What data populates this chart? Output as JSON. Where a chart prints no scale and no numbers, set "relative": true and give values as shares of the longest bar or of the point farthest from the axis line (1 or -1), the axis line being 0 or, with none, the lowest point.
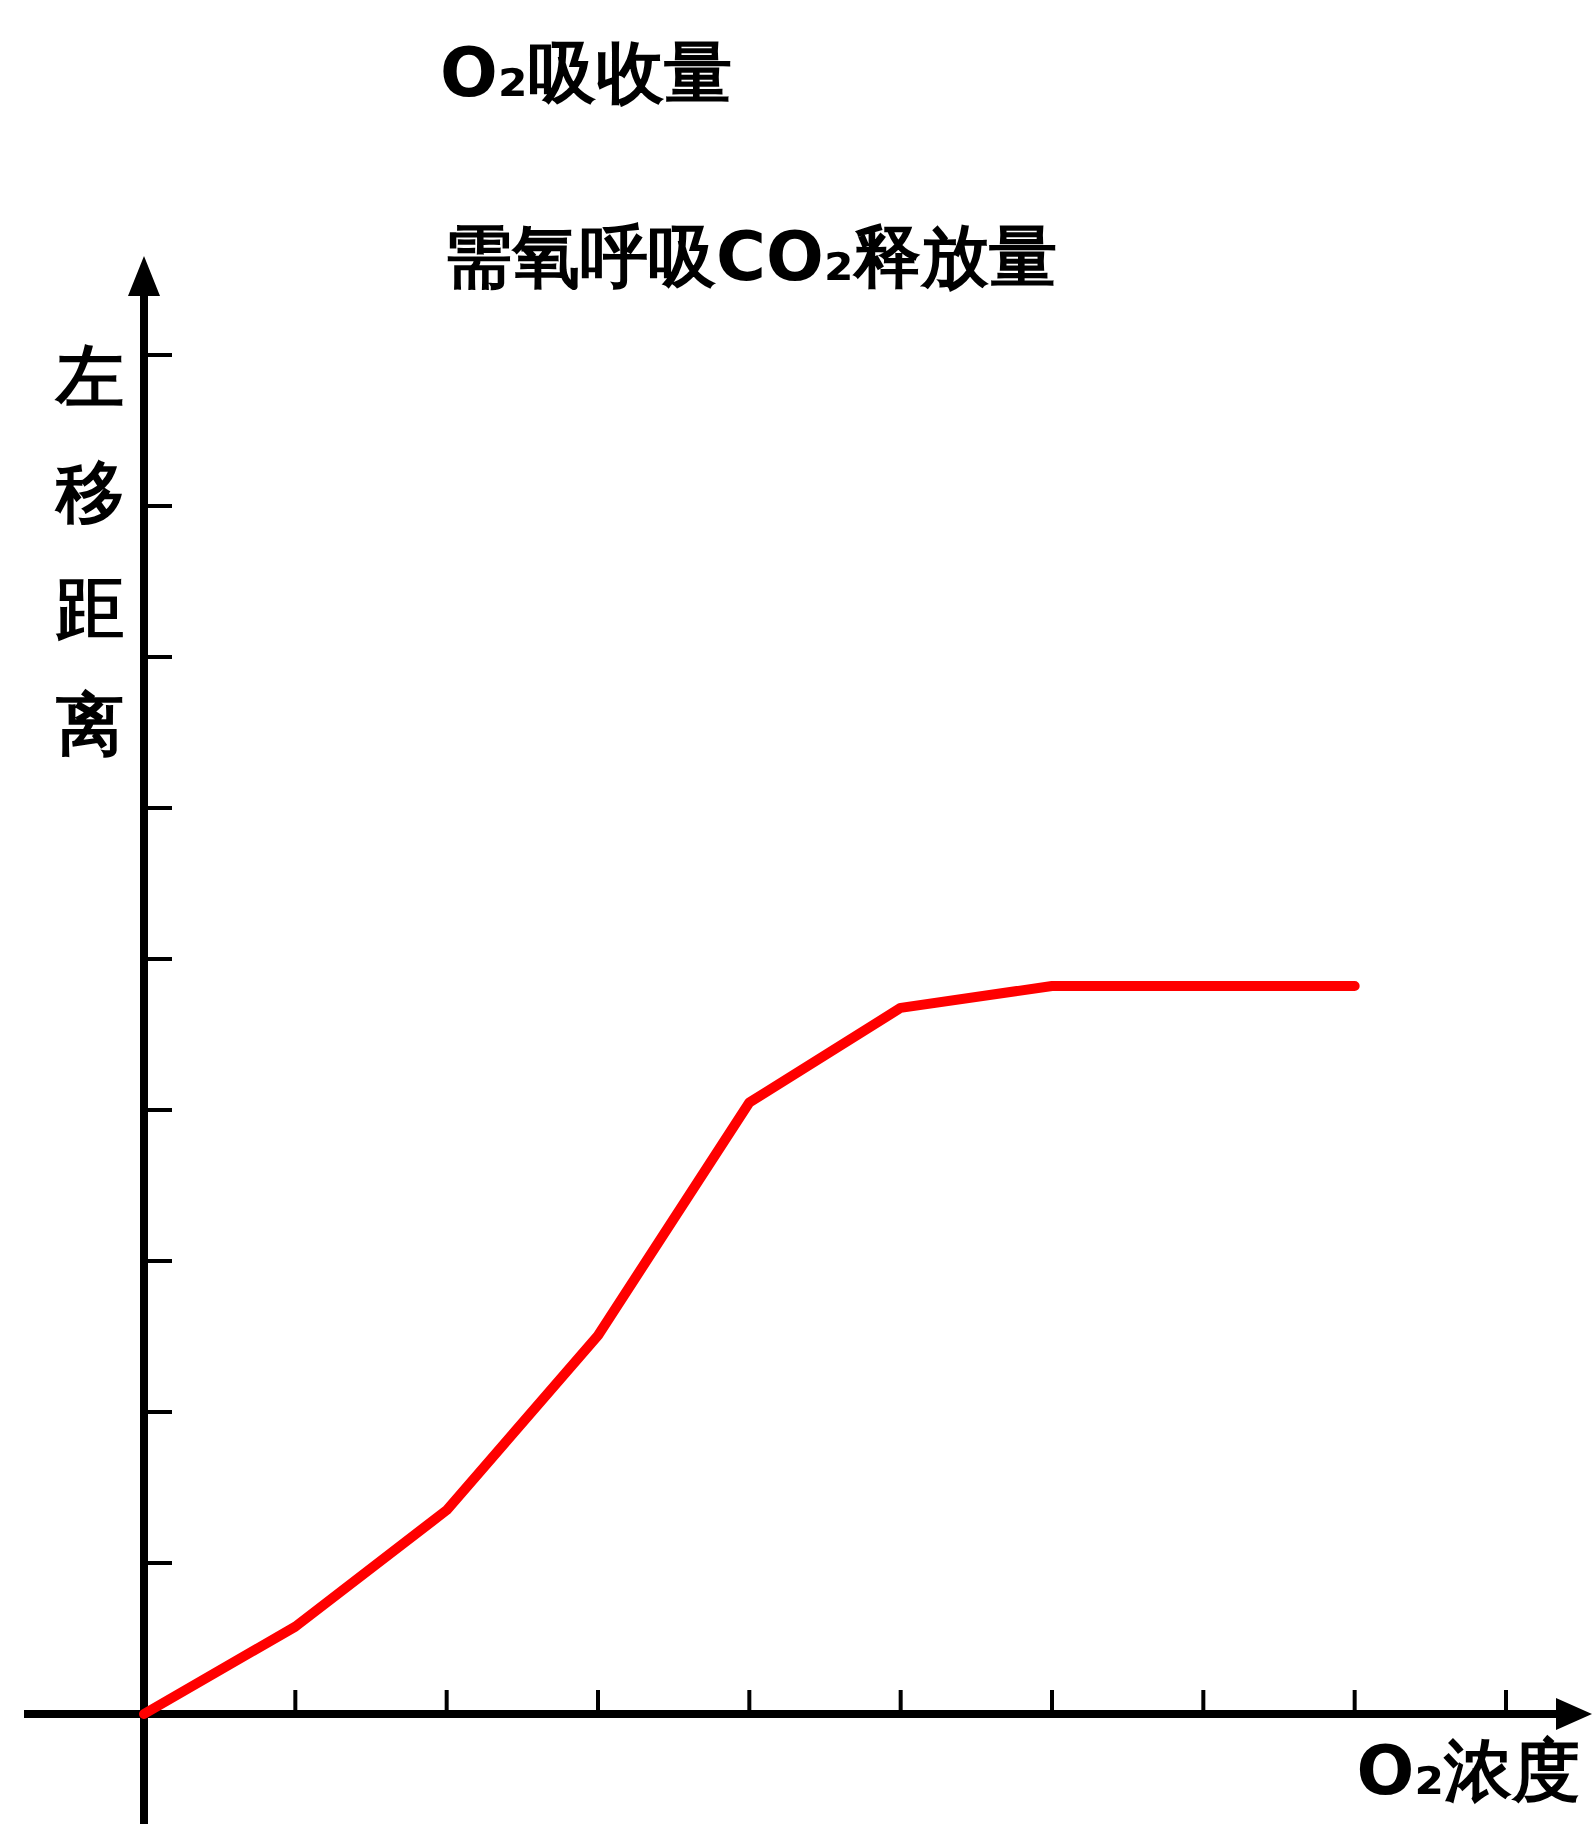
{
  "chart_data": {
    "type": "line",
    "title": "O₂吸收量",
    "subtitle": "需氧呼吸CO₂释放量",
    "xlabel": "O₂浓度",
    "ylabel": "左移距离",
    "relative": true,
    "categories": [
      null,
      null,
      null,
      null,
      null,
      null,
      null,
      null,
      null,
      null
    ],
    "series": [
      {
        "color": "#ff0000",
        "values": [
          0,
          0.12,
          0.28,
          0.52,
          0.84,
          0.97,
          1,
          1,
          1,
          null
        ]
      }
    ],
    "marker": "none",
    "line_style": "solid"
  }
}
